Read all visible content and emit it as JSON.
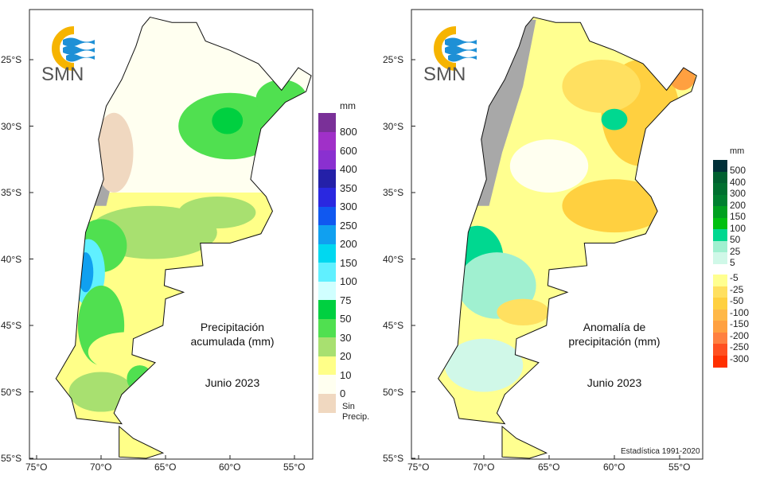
{
  "maps": [
    {
      "id": "precip",
      "title_line1": "Precipitación",
      "title_line2": "acumulada (mm)",
      "date": "Junio 2023",
      "legend_unit": "mm",
      "legend": [
        {
          "label": "800",
          "color": "#7a3098"
        },
        {
          "label": "600",
          "color": "#a030c8"
        },
        {
          "label": "400",
          "color": "#8a30d0"
        },
        {
          "label": "350",
          "color": "#2420a8"
        },
        {
          "label": "300",
          "color": "#2a28e0"
        },
        {
          "label": "250",
          "color": "#1058f0"
        },
        {
          "label": "200",
          "color": "#10a0f0"
        },
        {
          "label": "150",
          "color": "#00d8f0"
        },
        {
          "label": "100",
          "color": "#60f0ff"
        },
        {
          "label": "75",
          "color": "#d0ffff"
        },
        {
          "label": "50",
          "color": "#00d040"
        },
        {
          "label": "30",
          "color": "#50e050"
        },
        {
          "label": "20",
          "color": "#a8e070"
        },
        {
          "label": "10",
          "color": "#ffff88"
        },
        {
          "label": "0",
          "color": "#fffff0"
        },
        {
          "label": "",
          "color": "#f0d8c0"
        }
      ],
      "no_precip_line1": "Sin",
      "no_precip_line2": "Precip."
    },
    {
      "id": "anomaly",
      "title_line1": "Anomalía de",
      "title_line2": "precipitación (mm)",
      "date": "Junio 2023",
      "legend_unit": "mm",
      "legend_pos": [
        {
          "label": "500",
          "color": "#003038"
        },
        {
          "label": "400",
          "color": "#006030"
        },
        {
          "label": "300",
          "color": "#007030"
        },
        {
          "label": "200",
          "color": "#008030"
        },
        {
          "label": "150",
          "color": "#00a020"
        },
        {
          "label": "100",
          "color": "#00c010"
        },
        {
          "label": "50",
          "color": "#00d890"
        },
        {
          "label": "25",
          "color": "#a0f0d0"
        },
        {
          "label": "5",
          "color": "#d0f8e8"
        }
      ],
      "legend_neg": [
        {
          "label": "-5",
          "color": "#ffff90"
        },
        {
          "label": "-25",
          "color": "#ffe060"
        },
        {
          "label": "-50",
          "color": "#ffd040"
        },
        {
          "label": "-100",
          "color": "#ffb848"
        },
        {
          "label": "-150",
          "color": "#ffa040"
        },
        {
          "label": "-200",
          "color": "#ff8040"
        },
        {
          "label": "-250",
          "color": "#ff5020"
        },
        {
          "label": "-300",
          "color": "#ff3000"
        }
      ],
      "statistics_note": "Estadística 1991-2020"
    }
  ],
  "axes": {
    "lat_labels": [
      "25°S",
      "30°S",
      "35°S",
      "40°S",
      "45°S",
      "50°S",
      "55°S"
    ],
    "lon_labels": [
      "75°O",
      "70°O",
      "65°O",
      "60°O",
      "55°O"
    ]
  },
  "logo_text": "SMN"
}
